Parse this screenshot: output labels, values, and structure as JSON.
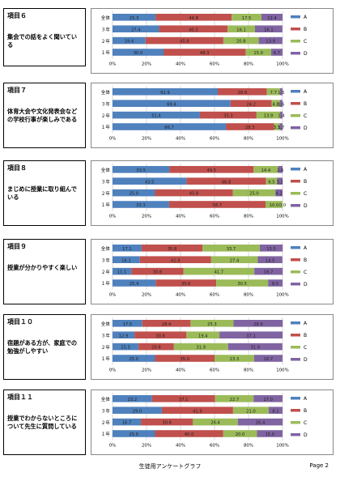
{
  "footer": {
    "title": "生徒用アンケートグラフ",
    "page": "Page 2"
  },
  "colors": {
    "A": "#4f81bd",
    "B": "#c0504d",
    "C": "#9bbb59",
    "D": "#8064a2"
  },
  "items": [
    {
      "title": "項目６",
      "desc": "集会での話をよく聞いている",
      "chart_data": {
        "type": "bar",
        "categories": [
          "全体",
          "３年",
          "２年",
          "１年"
        ],
        "series": [
          {
            "name": "A",
            "values": [
              25.3,
              27.4,
              19.4,
              30.0
            ]
          },
          {
            "name": "B",
            "values": [
              44.8,
              40.3,
              45.8,
              48.3
            ]
          },
          {
            "name": "C",
            "values": [
              17.5,
              16.1,
              20.8,
              15.0
            ]
          },
          {
            "name": "D",
            "values": [
              12.4,
              16.1,
              13.9,
              6.7
            ]
          }
        ],
        "xticks": [
          "0%",
          "20%",
          "40%",
          "60%",
          "80%",
          "100%"
        ]
      }
    },
    {
      "title": "項目７",
      "desc": "体育大会や文化発表会などの学校行事が楽しみである",
      "chart_data": {
        "type": "bar",
        "categories": [
          "全体",
          "３年",
          "２年",
          "１年"
        ],
        "series": [
          {
            "name": "A",
            "values": [
              61.9,
              69.4,
              51.4,
              66.7
            ]
          },
          {
            "name": "B",
            "values": [
              28.9,
              24.2,
              33.3,
              28.3
            ]
          },
          {
            "name": "C",
            "values": [
              7.7,
              4.8,
              13.9,
              3.3
            ]
          },
          {
            "name": "D",
            "values": [
              1.5,
              1.6,
              1.4,
              1.7
            ]
          }
        ],
        "labels": [
          [
            "61.9",
            "28.9",
            "7.7",
            "1.5"
          ],
          [
            "69.4",
            "24.2",
            "4.8",
            "1.6"
          ],
          [
            "51.4",
            "33.3",
            "13.9",
            "1.4"
          ],
          [
            "66.7",
            "28.3",
            "3.3",
            "1.7"
          ]
        ],
        "xticks": [
          "0%",
          "20%",
          "40%",
          "60%",
          "80%",
          "100%"
        ]
      }
    },
    {
      "title": "項目８",
      "desc": "まじめに授業に取り組んでいる",
      "chart_data": {
        "type": "bar",
        "categories": [
          "全体",
          "３年",
          "２年",
          "１年"
        ],
        "series": [
          {
            "name": "A",
            "values": [
              33.5,
              43.5,
              25.0,
              33.3
            ]
          },
          {
            "name": "B",
            "values": [
              49.5,
              46.8,
              45.8,
              56.7
            ]
          },
          {
            "name": "C",
            "values": [
              14.4,
              6.5,
              25.0,
              10.0
            ]
          },
          {
            "name": "D",
            "values": [
              2.6,
              3.2,
              4.2,
              0.0
            ]
          }
        ],
        "labels": [
          [
            "33.5",
            "49.5",
            "14.4",
            "2.6"
          ],
          [
            "43.5",
            "46.8",
            "6.5",
            "3.2"
          ],
          [
            "25.0",
            "45.8",
            "25.0",
            "4.2"
          ],
          [
            "33.3",
            "56.7",
            "10.0",
            "0.0"
          ]
        ],
        "xticks": [
          "0%",
          "20%",
          "40%",
          "60%",
          "80%",
          "100%"
        ]
      }
    },
    {
      "title": "項目９",
      "desc": "授業が分かりやすく楽しい",
      "chart_data": {
        "type": "bar",
        "categories": [
          "全体",
          "３年",
          "２年",
          "１年"
        ],
        "series": [
          {
            "name": "A",
            "values": [
              17.1,
              16.1,
              11.1,
              25.4
            ]
          },
          {
            "name": "B",
            "values": [
              35.8,
              41.9,
              30.6,
              35.6
            ]
          },
          {
            "name": "C",
            "values": [
              33.7,
              27.4,
              41.7,
              30.5
            ]
          },
          {
            "name": "D",
            "values": [
              13.5,
              14.5,
              16.7,
              8.5
            ]
          }
        ],
        "xticks": [
          "0%",
          "20%",
          "40%",
          "60%",
          "80%",
          "100%"
        ]
      }
    },
    {
      "title": "項目１０",
      "desc": "宿題がある方が、家庭での勉強がしやすい",
      "chart_data": {
        "type": "bar",
        "categories": [
          "全体",
          "３年",
          "２年",
          "１年"
        ],
        "series": [
          {
            "name": "A",
            "values": [
              17.5,
              12.9,
              15.3,
              25.0
            ]
          },
          {
            "name": "B",
            "values": [
              28.4,
              30.6,
              20.8,
              35.0
            ]
          },
          {
            "name": "C",
            "values": [
              25.3,
              19.4,
              31.9,
              23.3
            ]
          },
          {
            "name": "D",
            "values": [
              28.9,
              37.1,
              31.9,
              16.7
            ]
          }
        ],
        "xticks": [
          "0%",
          "20%",
          "40%",
          "60%",
          "80%",
          "100%"
        ]
      }
    },
    {
      "title": "項目１１",
      "desc": "授業でわからないところについて先生に質問している",
      "chart_data": {
        "type": "bar",
        "categories": [
          "全体",
          "３年",
          "２年",
          "１年"
        ],
        "series": [
          {
            "name": "A",
            "values": [
              23.2,
              29.0,
              16.7,
              25.0
            ]
          },
          {
            "name": "B",
            "values": [
              37.1,
              41.9,
              30.6,
              40.0
            ]
          },
          {
            "name": "C",
            "values": [
              22.7,
              21.0,
              26.4,
              20.0
            ]
          },
          {
            "name": "D",
            "values": [
              17.0,
              8.1,
              26.4,
              15.0
            ]
          }
        ],
        "xticks": [
          "0%",
          "20%",
          "40%",
          "60%",
          "80%",
          "100%"
        ]
      }
    }
  ]
}
